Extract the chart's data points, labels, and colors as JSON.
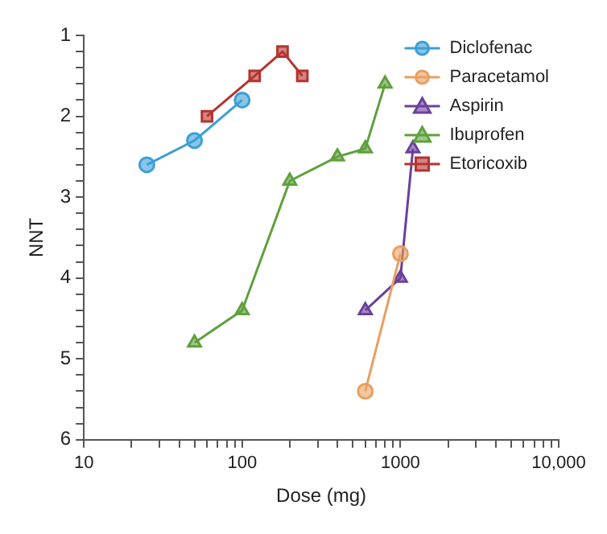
{
  "chart_data": {
    "type": "line",
    "xlabel": "Dose (mg)",
    "ylabel": "NNT",
    "log": "x",
    "grid": false,
    "legend": "top right",
    "line_style": "solid",
    "xlim": [
      10,
      10000
    ],
    "xticks": [
      10,
      {
        "value": 20,
        "label": null
      },
      {
        "value": 30,
        "label": null
      },
      {
        "value": 40,
        "label": null
      },
      {
        "value": 50,
        "label": null
      },
      {
        "value": 60,
        "label": null
      },
      {
        "value": 70,
        "label": null
      },
      {
        "value": 80,
        "label": null
      },
      {
        "value": 90,
        "label": null
      },
      100,
      {
        "value": 200,
        "label": null
      },
      {
        "value": 300,
        "label": null
      },
      {
        "value": 400,
        "label": null
      },
      {
        "value": 500,
        "label": null
      },
      {
        "value": 600,
        "label": null
      },
      {
        "value": 700,
        "label": null
      },
      {
        "value": 800,
        "label": null
      },
      {
        "value": 900,
        "label": null
      },
      1000,
      {
        "value": 2000,
        "label": null
      },
      {
        "value": 3000,
        "label": null
      },
      {
        "value": 4000,
        "label": null
      },
      {
        "value": 5000,
        "label": null
      },
      {
        "value": 6000,
        "label": null
      },
      {
        "value": 7000,
        "label": null
      },
      {
        "value": 8000,
        "label": null
      },
      {
        "value": 9000,
        "label": null
      },
      {
        "value": 10000,
        "label": "10,000"
      }
    ],
    "ylim": [
      6,
      1
    ],
    "yticks": [
      1,
      {
        "value": 1.2,
        "label": null
      },
      {
        "value": 1.4,
        "label": null
      },
      {
        "value": 1.6,
        "label": null
      },
      {
        "value": 1.8,
        "label": null
      },
      2,
      {
        "value": 2.2,
        "label": null
      },
      {
        "value": 2.4,
        "label": null
      },
      {
        "value": 2.6,
        "label": null
      },
      {
        "value": 2.8,
        "label": null
      },
      3,
      {
        "value": 3.2,
        "label": null
      },
      {
        "value": 3.4,
        "label": null
      },
      {
        "value": 3.6,
        "label": null
      },
      {
        "value": 3.8,
        "label": null
      },
      4,
      {
        "value": 4.2,
        "label": null
      },
      {
        "value": 4.4,
        "label": null
      },
      {
        "value": 4.6,
        "label": null
      },
      {
        "value": 4.8,
        "label": null
      },
      5,
      {
        "value": 5.2,
        "label": null
      },
      {
        "value": 5.4,
        "label": null
      },
      {
        "value": 5.6,
        "label": null
      },
      {
        "value": 5.8,
        "label": null
      },
      6
    ],
    "series": [
      {
        "name": "Diclofenac",
        "color": "#3a9fd6",
        "marker": "circle",
        "x": [
          25,
          50,
          100
        ],
        "values": [
          2.6,
          2.3,
          1.8
        ]
      },
      {
        "name": "Paracetamol",
        "color": "#e8a060",
        "marker": "circle",
        "x": [
          600,
          1000
        ],
        "values": [
          5.4,
          3.7
        ]
      },
      {
        "name": "Aspirin",
        "color": "#6b3f9c",
        "marker": "triangle",
        "x": [
          600,
          1000,
          1200
        ],
        "values": [
          4.4,
          4.0,
          2.4
        ]
      },
      {
        "name": "Ibuprofen",
        "color": "#5fa03c",
        "marker": "triangle",
        "x": [
          50,
          100,
          200,
          400,
          600,
          800
        ],
        "values": [
          4.8,
          4.4,
          2.8,
          2.5,
          2.4,
          1.6
        ]
      },
      {
        "name": "Etoricoxib",
        "color": "#b5332e",
        "marker": "square",
        "x": [
          60,
          120,
          180,
          240
        ],
        "values": [
          2.0,
          1.5,
          1.2,
          1.5
        ]
      }
    ]
  }
}
